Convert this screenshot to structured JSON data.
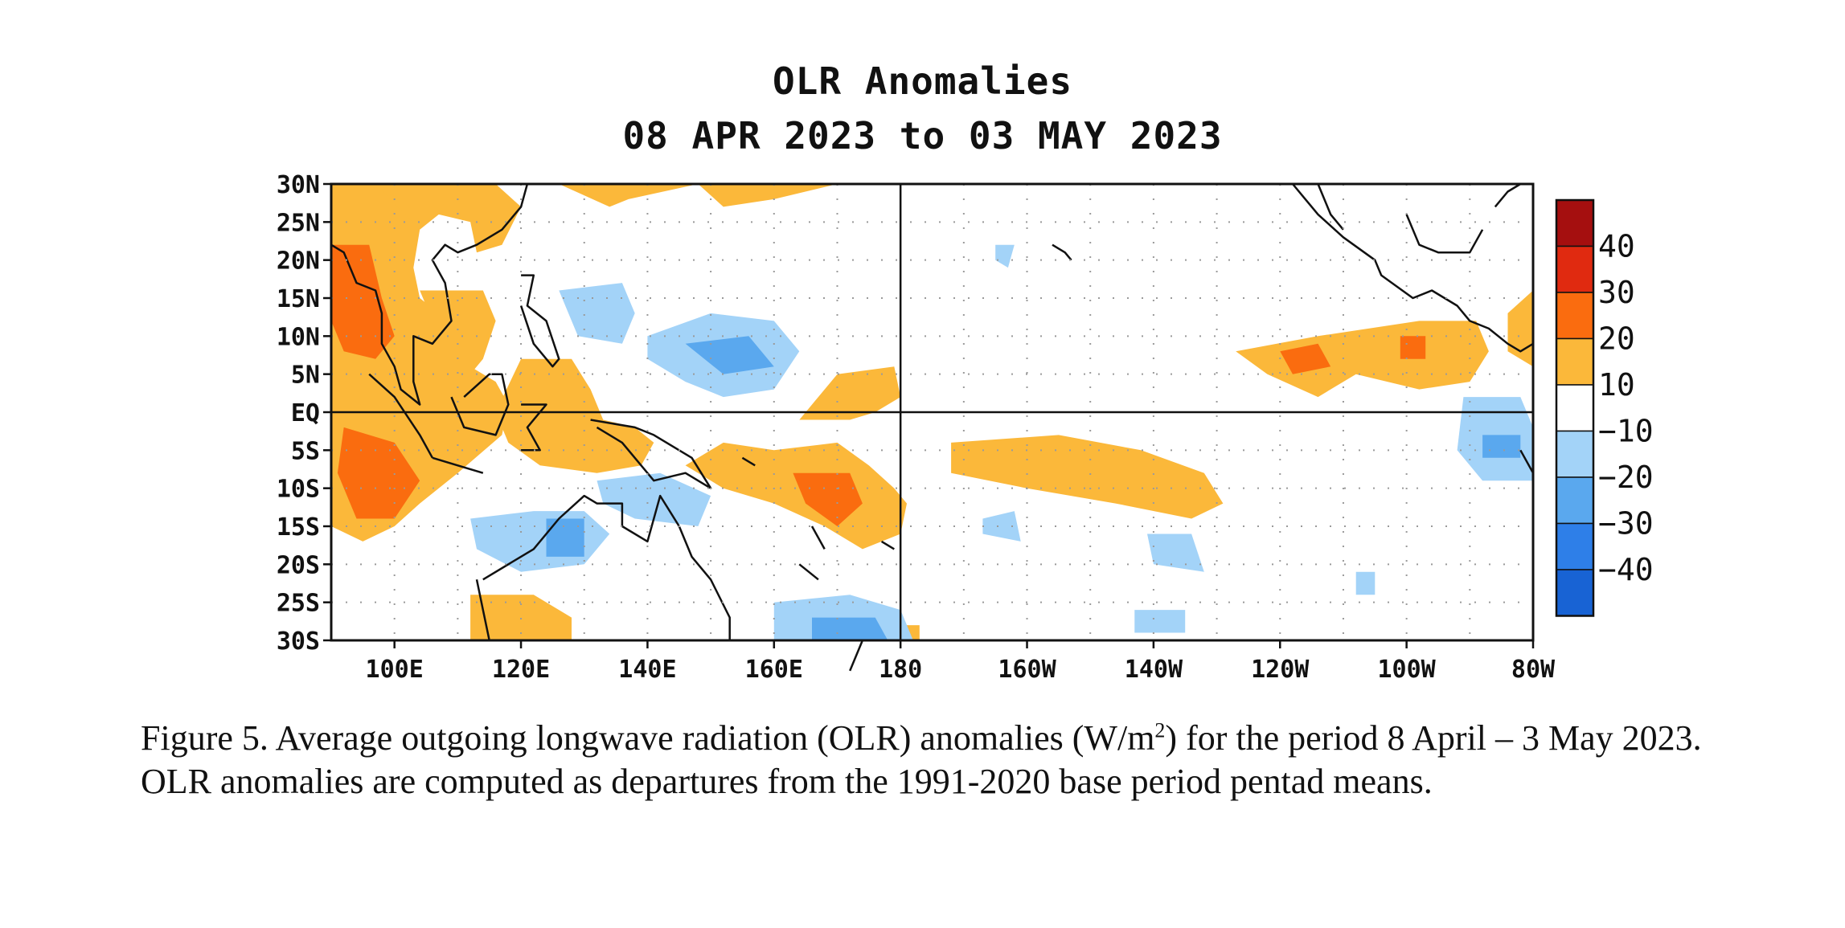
{
  "map": {
    "title": "OLR Anomalies",
    "subtitle": "08 APR 2023 to 03 MAY 2023",
    "lat_labels": [
      "30N",
      "25N",
      "20N",
      "15N",
      "10N",
      "5N",
      "EQ",
      "5S",
      "10S",
      "15S",
      "20S",
      "25S",
      "30S"
    ],
    "lon_labels": [
      "100E",
      "120E",
      "140E",
      "160E",
      "180",
      "160W",
      "140W",
      "120W",
      "100W",
      "80W"
    ],
    "extent": {
      "lon_min": 90,
      "lon_max": 280,
      "lat_min": -30,
      "lat_max": 30
    },
    "colorbar": {
      "ticks": [
        "40",
        "30",
        "20",
        "10",
        "−10",
        "−20",
        "−30",
        "−40"
      ],
      "colors": [
        "#a50f0f",
        "#e02a10",
        "#fa6c0f",
        "#fbb83a",
        "#ffffff",
        "#a3d3f8",
        "#5aa8ee",
        "#2e7fe8",
        "#1863d4"
      ]
    },
    "colors": {
      "pos10": "#fbb83a",
      "pos20": "#fa6c0f",
      "pos30": "#e02a10",
      "neg10": "#a3d3f8",
      "neg20": "#5aa8ee",
      "neg30": "#2e7fe8"
    }
  },
  "caption": {
    "part1": "Figure 5. Average outgoing longwave radiation (OLR) anomalies (W/m",
    "sup": "2",
    "part2": ") for the period 8 April – 3 May 2023.  OLR anomalies are computed as departures from the 1991-2020 base period pentad means."
  }
}
